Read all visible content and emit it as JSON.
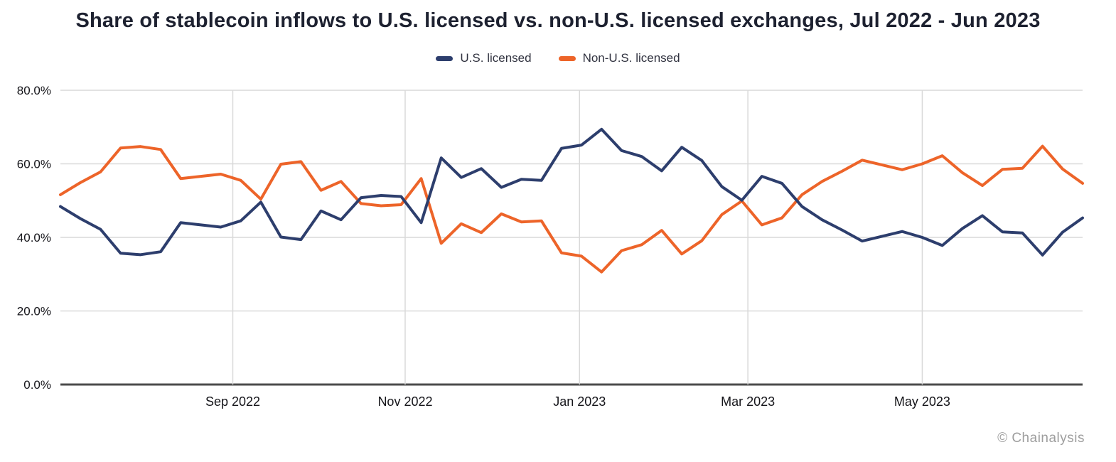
{
  "title": "Share of stablecoin inflows to U.S. licensed vs. non-U.S. licensed exchanges, Jul 2022 - Jun 2023",
  "legend": [
    {
      "label": "U.S. licensed",
      "color": "#2d3e6d"
    },
    {
      "label": "Non-U.S. licensed",
      "color": "#ed6429"
    }
  ],
  "footer": "© Chainalysis",
  "colors": {
    "us_licensed": "#2d3e6d",
    "non_us_licensed": "#ed6429",
    "gridline": "#d9d9d9",
    "axis_line": "#4b4b4b",
    "tick_text": "#15151a",
    "footer_text": "#9e9e9e"
  },
  "chart_data": {
    "type": "line",
    "title": "Share of stablecoin inflows to U.S. licensed vs. non-U.S. licensed exchanges, Jul 2022 - Jun 2023",
    "xlabel": "",
    "ylabel": "",
    "x_unit": "week (52 weekly points, Jul 2022 - Jun 2023)",
    "ylim": [
      0,
      80
    ],
    "grid": true,
    "legend_position": "top-center",
    "yticks": [
      {
        "label": "0.0%",
        "value": 0
      },
      {
        "label": "20.0%",
        "value": 20
      },
      {
        "label": "40.0%",
        "value": 40
      },
      {
        "label": "60.0%",
        "value": 60
      },
      {
        "label": "80.0%",
        "value": 80
      }
    ],
    "xticks": [
      {
        "label": "Sep 2022",
        "week_index": 8.6
      },
      {
        "label": "Nov 2022",
        "week_index": 17.2
      },
      {
        "label": "Jan 2023",
        "week_index": 25.9
      },
      {
        "label": "Mar 2023",
        "week_index": 34.3
      },
      {
        "label": "May 2023",
        "week_index": 43.0
      }
    ],
    "series": [
      {
        "name": "U.S. licensed",
        "color": "#2d3e6d",
        "values": [
          48.4,
          45.1,
          42.2,
          35.7,
          35.3,
          36.1,
          44.0,
          43.4,
          42.8,
          44.5,
          49.6,
          40.1,
          39.4,
          47.2,
          44.8,
          50.8,
          51.4,
          51.1,
          44.0,
          61.6,
          56.3,
          58.7,
          53.6,
          55.8,
          55.5,
          64.2,
          65.1,
          69.4,
          63.6,
          62.0,
          58.1,
          64.5,
          60.9,
          53.8,
          50.1,
          56.6,
          54.7,
          48.4,
          44.8,
          42.0,
          39.0,
          40.3,
          41.6,
          40.0,
          37.8,
          42.4,
          45.9,
          41.5,
          41.2,
          35.2,
          41.4,
          45.3
        ]
      },
      {
        "name": "Non-U.S. licensed",
        "color": "#ed6429",
        "values": [
          51.6,
          54.9,
          57.8,
          64.3,
          64.7,
          63.9,
          56.0,
          56.6,
          57.2,
          55.5,
          50.4,
          59.9,
          60.6,
          52.8,
          55.2,
          49.2,
          48.6,
          48.9,
          56.0,
          38.4,
          43.7,
          41.3,
          46.4,
          44.2,
          44.5,
          35.8,
          34.9,
          30.6,
          36.4,
          38.0,
          41.9,
          35.5,
          39.1,
          46.2,
          49.9,
          43.4,
          45.3,
          51.6,
          55.2,
          58.0,
          61.0,
          59.7,
          58.4,
          60.0,
          62.2,
          57.6,
          54.1,
          58.5,
          58.8,
          64.8,
          58.6,
          54.7
        ]
      }
    ]
  }
}
